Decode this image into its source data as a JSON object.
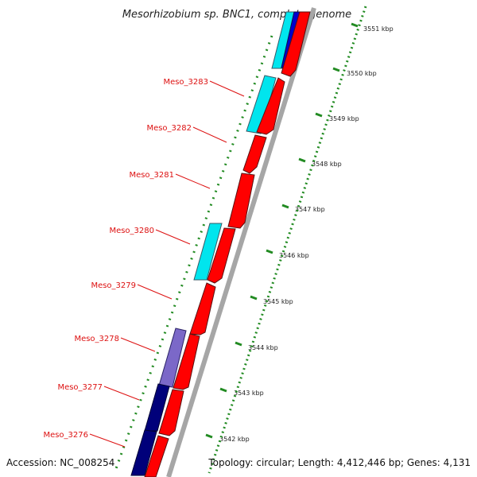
{
  "title": "Mesorhizobium sp. BNC1, complete genome",
  "accession": "Accession: NC_008254",
  "topology": "Topology: circular; Length: 4,412,446 bp; Genes: 4,131",
  "colors": {
    "forward_cds": "#ff0000",
    "reverse_cds_cyan": "#00e5ee",
    "reverse_cds_blue": "#0000cd",
    "reverse_cds_navy": "#00007a",
    "reverse_cds_purple": "#7b68c8",
    "backbone": "#9a9a9a",
    "tick": "#228b22",
    "label": "#dd1111"
  },
  "ticks": [
    {
      "label": "3551 kbp",
      "kbp": 3551
    },
    {
      "label": "3550 kbp",
      "kbp": 3550
    },
    {
      "label": "3549 kbp",
      "kbp": 3549
    },
    {
      "label": "3548 kbp",
      "kbp": 3548
    },
    {
      "label": "3547 kbp",
      "kbp": 3547
    },
    {
      "label": "3546 kbp",
      "kbp": 3546
    },
    {
      "label": "3545 kbp",
      "kbp": 3545
    },
    {
      "label": "3544 kbp",
      "kbp": 3544
    },
    {
      "label": "3543 kbp",
      "kbp": 3543
    },
    {
      "label": "3542 kbp",
      "kbp": 3542
    }
  ],
  "gene_labels": [
    "Meso_3283",
    "Meso_3282",
    "Meso_3281",
    "Meso_3280",
    "Meso_3279",
    "Meso_3278",
    "Meso_3277",
    "Meso_3276"
  ]
}
